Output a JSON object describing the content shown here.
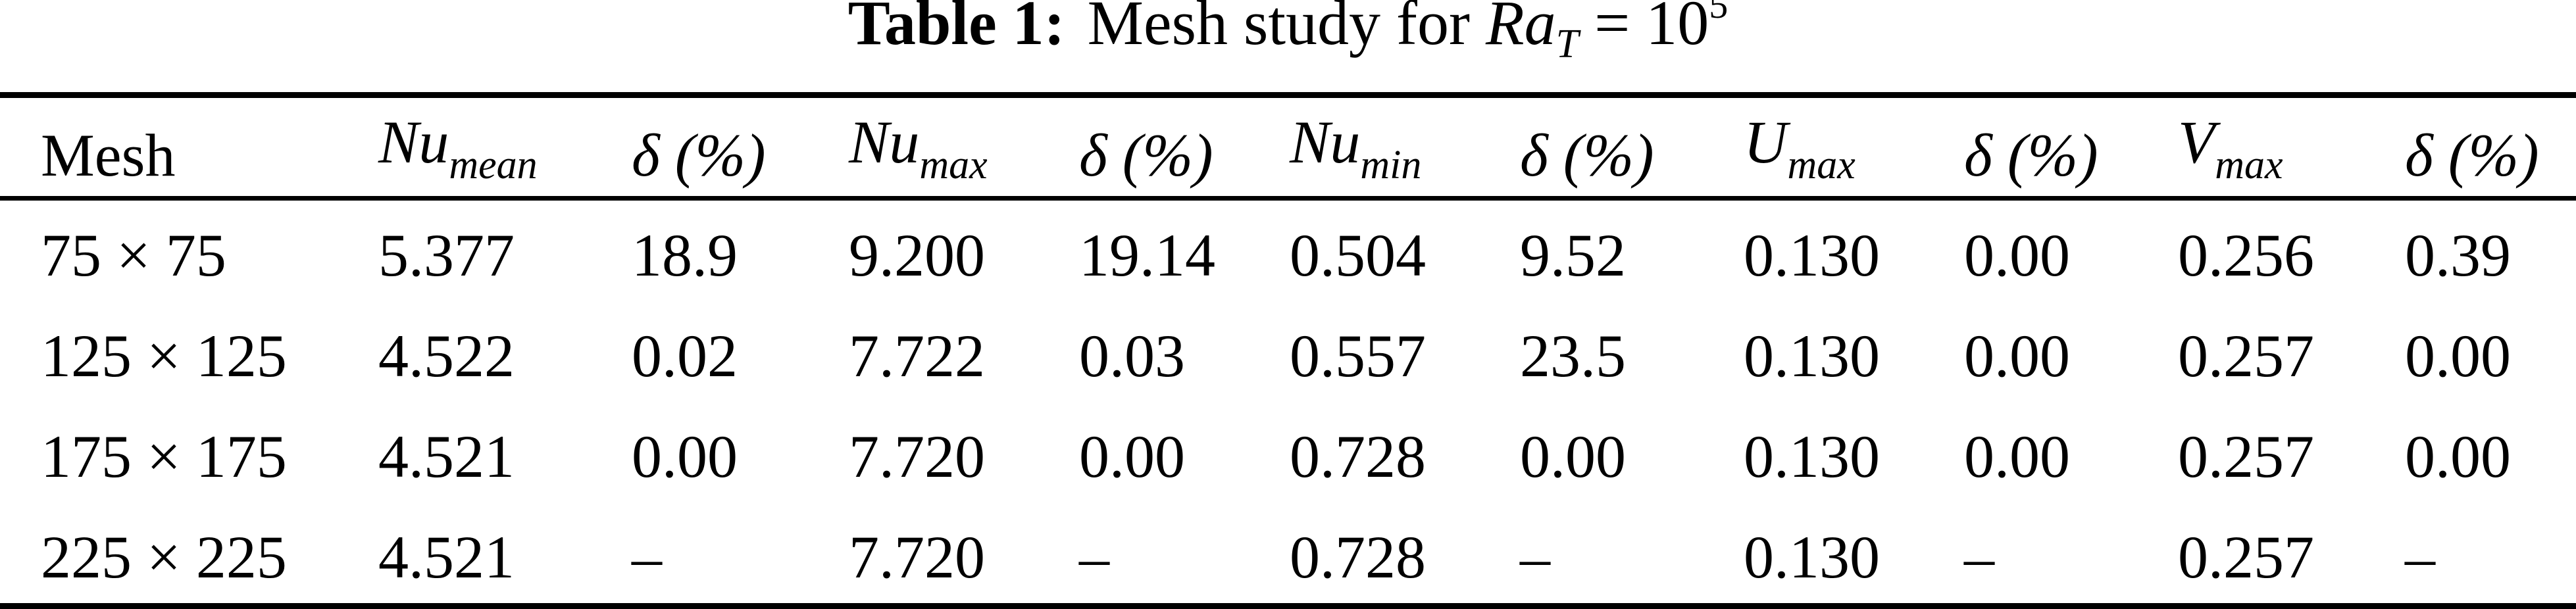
{
  "caption": {
    "label": "Table 1:",
    "text": " Mesh study for ",
    "var": "Ra",
    "var_sub": "T",
    "equals": " = 10",
    "exponent": "5"
  },
  "table": {
    "columns": [
      {
        "key": "mesh",
        "label": "Mesh",
        "italic": false,
        "sub": ""
      },
      {
        "key": "nu-mean",
        "label": "Nu",
        "italic": true,
        "sub": "mean"
      },
      {
        "key": "delta-mean",
        "label": "δ (%)",
        "italic": true,
        "sub": ""
      },
      {
        "key": "nu-max",
        "label": "Nu",
        "italic": true,
        "sub": "max"
      },
      {
        "key": "delta-numax",
        "label": "δ (%)",
        "italic": true,
        "sub": ""
      },
      {
        "key": "nu-min",
        "label": "Nu",
        "italic": true,
        "sub": "min"
      },
      {
        "key": "delta-numin",
        "label": "δ (%)",
        "italic": true,
        "sub": ""
      },
      {
        "key": "u-max",
        "label": "U",
        "italic": true,
        "sub": "max"
      },
      {
        "key": "delta-umax",
        "label": "δ (%)",
        "italic": true,
        "sub": ""
      },
      {
        "key": "v-max",
        "label": "V",
        "italic": true,
        "sub": "max"
      },
      {
        "key": "delta-vmax",
        "label": "δ (%)",
        "italic": true,
        "sub": ""
      }
    ],
    "rows": [
      [
        "75 × 75",
        "5.377",
        "18.9",
        "9.200",
        "19.14",
        "0.504",
        "9.52",
        "0.130",
        "0.00",
        "0.256",
        "0.39"
      ],
      [
        "125 × 125",
        "4.522",
        "0.02",
        "7.722",
        "0.03",
        "0.557",
        "23.5",
        "0.130",
        "0.00",
        "0.257",
        "0.00"
      ],
      [
        "175 × 175",
        "4.521",
        "0.00",
        "7.720",
        "0.00",
        "0.728",
        "0.00",
        "0.130",
        "0.00",
        "0.257",
        "0.00"
      ],
      [
        "225 × 225",
        "4.521",
        "–",
        "7.720",
        "–",
        "0.728",
        "–",
        "0.130",
        "–",
        "0.257",
        "–"
      ]
    ]
  },
  "colors": {
    "text": "#000000",
    "background": "#ffffff",
    "rule": "#000000"
  }
}
